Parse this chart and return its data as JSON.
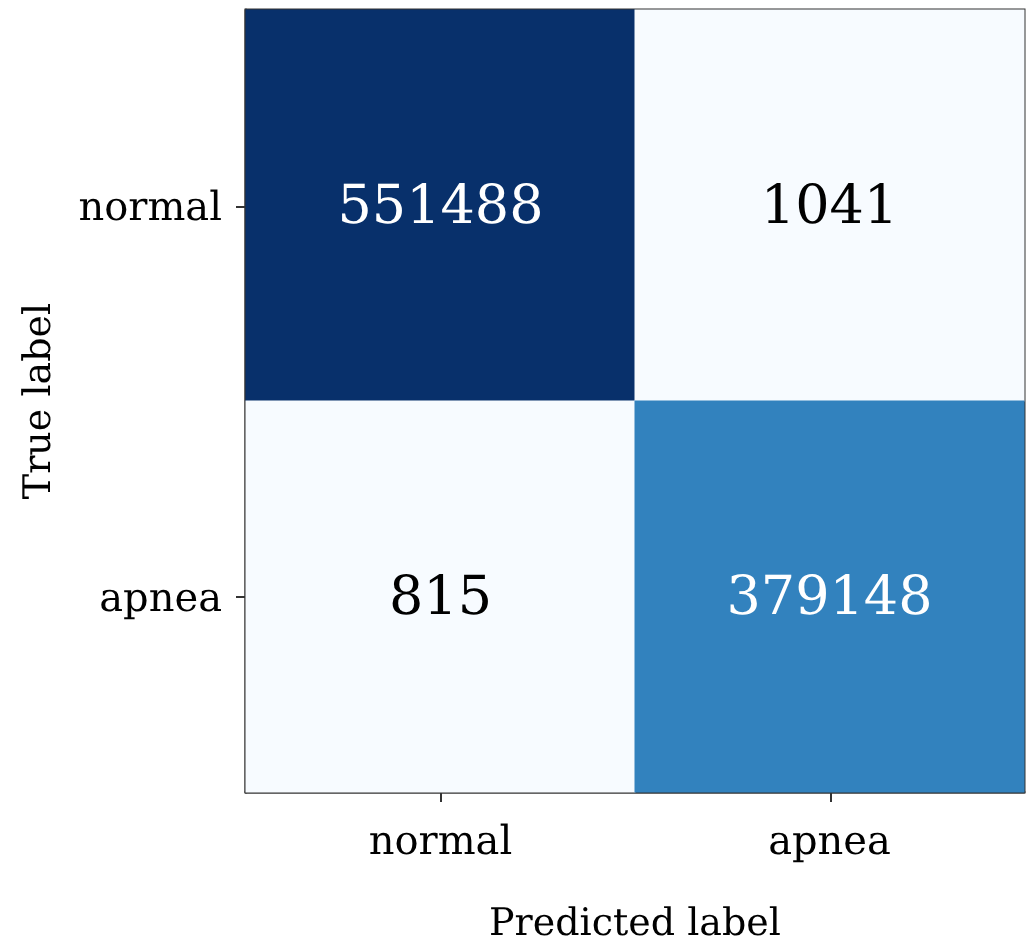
{
  "chart_data": {
    "type": "heatmap",
    "xlabel": "Predicted label",
    "ylabel": "True label",
    "categories": [
      "normal",
      "apnea"
    ],
    "y_categories": [
      "normal",
      "apnea"
    ],
    "cells": [
      [
        551488,
        1041
      ],
      [
        815,
        379148
      ]
    ],
    "colors": [
      [
        "#08306b",
        "#f7fbff"
      ],
      [
        "#f7fbff",
        "#3282be"
      ]
    ],
    "data_labels": true
  }
}
